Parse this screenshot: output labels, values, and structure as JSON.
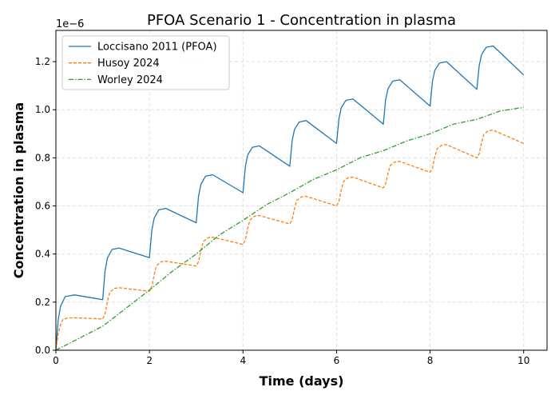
{
  "chart_data": {
    "type": "line",
    "title": "PFOA Scenario 1 - Concentration in plasma",
    "xlabel": "Time (days)",
    "ylabel": "Concentration in plasma",
    "y_offset_text": "1e−6",
    "y_multiplier": 1e-06,
    "xlim": [
      0,
      10.5
    ],
    "ylim": [
      0,
      1.33
    ],
    "xticks": [
      0,
      2,
      4,
      6,
      8,
      10
    ],
    "xtick_labels": [
      "0",
      "2",
      "4",
      "6",
      "8",
      "10"
    ],
    "yticks": [
      0,
      0.2,
      0.4,
      0.6,
      0.8,
      1.0,
      1.2
    ],
    "ytick_labels": [
      "0.0",
      "0.2",
      "0.4",
      "0.6",
      "0.8",
      "1.0",
      "1.2"
    ],
    "grid": true,
    "legend_placement": "top-left",
    "series": [
      {
        "name": "Loccisano 2011 (PFOA)",
        "color": "#1f77b4",
        "style": "solid",
        "points": [
          [
            0,
            0
          ],
          [
            0.05,
            0.127
          ],
          [
            0.1,
            0.184
          ],
          [
            0.2,
            0.223
          ],
          [
            0.4,
            0.23
          ],
          [
            1,
            0.21
          ],
          [
            1.05,
            0.328
          ],
          [
            1.1,
            0.382
          ],
          [
            1.2,
            0.419
          ],
          [
            1.35,
            0.425
          ],
          [
            2,
            0.385
          ],
          [
            2.05,
            0.498
          ],
          [
            2.1,
            0.549
          ],
          [
            2.2,
            0.584
          ],
          [
            2.35,
            0.59
          ],
          [
            3,
            0.53
          ],
          [
            3.05,
            0.64
          ],
          [
            3.1,
            0.69
          ],
          [
            3.2,
            0.724
          ],
          [
            3.35,
            0.73
          ],
          [
            4,
            0.655
          ],
          [
            4.05,
            0.762
          ],
          [
            4.1,
            0.811
          ],
          [
            4.2,
            0.844
          ],
          [
            4.35,
            0.85
          ],
          [
            5,
            0.765
          ],
          [
            5.05,
            0.87
          ],
          [
            5.1,
            0.917
          ],
          [
            5.2,
            0.949
          ],
          [
            5.35,
            0.955
          ],
          [
            6,
            0.86
          ],
          [
            6.05,
            0.962
          ],
          [
            6.1,
            1.008
          ],
          [
            6.2,
            1.039
          ],
          [
            6.35,
            1.045
          ],
          [
            7,
            0.94
          ],
          [
            7.05,
            1.042
          ],
          [
            7.1,
            1.088
          ],
          [
            7.2,
            1.119
          ],
          [
            7.35,
            1.125
          ],
          [
            8,
            1.015
          ],
          [
            8.05,
            1.117
          ],
          [
            8.1,
            1.163
          ],
          [
            8.2,
            1.194
          ],
          [
            8.35,
            1.2
          ],
          [
            9,
            1.085
          ],
          [
            9.05,
            1.184
          ],
          [
            9.1,
            1.229
          ],
          [
            9.2,
            1.26
          ],
          [
            9.35,
            1.265
          ],
          [
            10,
            1.145
          ]
        ]
      },
      {
        "name": "Husoy 2024",
        "color": "#ff7f0e",
        "style": "dashed",
        "points": [
          [
            0,
            0
          ],
          [
            0.05,
            0.068
          ],
          [
            0.1,
            0.108
          ],
          [
            0.15,
            0.128
          ],
          [
            0.25,
            0.134
          ],
          [
            0.4,
            0.135
          ],
          [
            1,
            0.13
          ],
          [
            1.05,
            0.15
          ],
          [
            1.1,
            0.2015
          ],
          [
            1.15,
            0.2405
          ],
          [
            1.25,
            0.257
          ],
          [
            1.35,
            0.26
          ],
          [
            2,
            0.245
          ],
          [
            2.05,
            0.264
          ],
          [
            2.1,
            0.314
          ],
          [
            2.15,
            0.351
          ],
          [
            2.25,
            0.368
          ],
          [
            2.35,
            0.37
          ],
          [
            3,
            0.35
          ],
          [
            3.05,
            0.368
          ],
          [
            3.1,
            0.416
          ],
          [
            3.15,
            0.452
          ],
          [
            3.25,
            0.468
          ],
          [
            3.35,
            0.47
          ],
          [
            4,
            0.44
          ],
          [
            4.05,
            0.458
          ],
          [
            4.1,
            0.506
          ],
          [
            4.15,
            0.542
          ],
          [
            4.25,
            0.558
          ],
          [
            4.35,
            0.56
          ],
          [
            5,
            0.525
          ],
          [
            5.05,
            0.542
          ],
          [
            5.1,
            0.588
          ],
          [
            5.15,
            0.623
          ],
          [
            5.25,
            0.638
          ],
          [
            5.35,
            0.64
          ],
          [
            6,
            0.6
          ],
          [
            6.05,
            0.618
          ],
          [
            6.1,
            0.666
          ],
          [
            6.15,
            0.702
          ],
          [
            6.25,
            0.718
          ],
          [
            6.35,
            0.72
          ],
          [
            7,
            0.675
          ],
          [
            7.05,
            0.692
          ],
          [
            7.1,
            0.736
          ],
          [
            7.15,
            0.769
          ],
          [
            7.25,
            0.783
          ],
          [
            7.35,
            0.785
          ],
          [
            8,
            0.74
          ],
          [
            8.05,
            0.757
          ],
          [
            8.1,
            0.803
          ],
          [
            8.15,
            0.838
          ],
          [
            8.25,
            0.853
          ],
          [
            8.35,
            0.855
          ],
          [
            9,
            0.8
          ],
          [
            9.05,
            0.817
          ],
          [
            9.1,
            0.863
          ],
          [
            9.15,
            0.898
          ],
          [
            9.25,
            0.913
          ],
          [
            9.35,
            0.915
          ],
          [
            10,
            0.86
          ]
        ]
      },
      {
        "name": "Worley 2024",
        "color": "#2ca02c",
        "style": "dashdot",
        "points": [
          [
            0,
            0
          ],
          [
            0.5,
            0.05
          ],
          [
            1,
            0.1
          ],
          [
            1.5,
            0.175
          ],
          [
            2,
            0.25
          ],
          [
            2.5,
            0.33
          ],
          [
            3,
            0.4
          ],
          [
            3.5,
            0.48
          ],
          [
            4,
            0.54
          ],
          [
            4.5,
            0.605
          ],
          [
            5,
            0.655
          ],
          [
            5.5,
            0.71
          ],
          [
            6,
            0.75
          ],
          [
            6.5,
            0.8
          ],
          [
            7,
            0.83
          ],
          [
            7.5,
            0.87
          ],
          [
            8,
            0.9
          ],
          [
            8.5,
            0.94
          ],
          [
            9,
            0.96
          ],
          [
            9.5,
            0.995
          ],
          [
            10,
            1.01
          ]
        ]
      }
    ]
  }
}
